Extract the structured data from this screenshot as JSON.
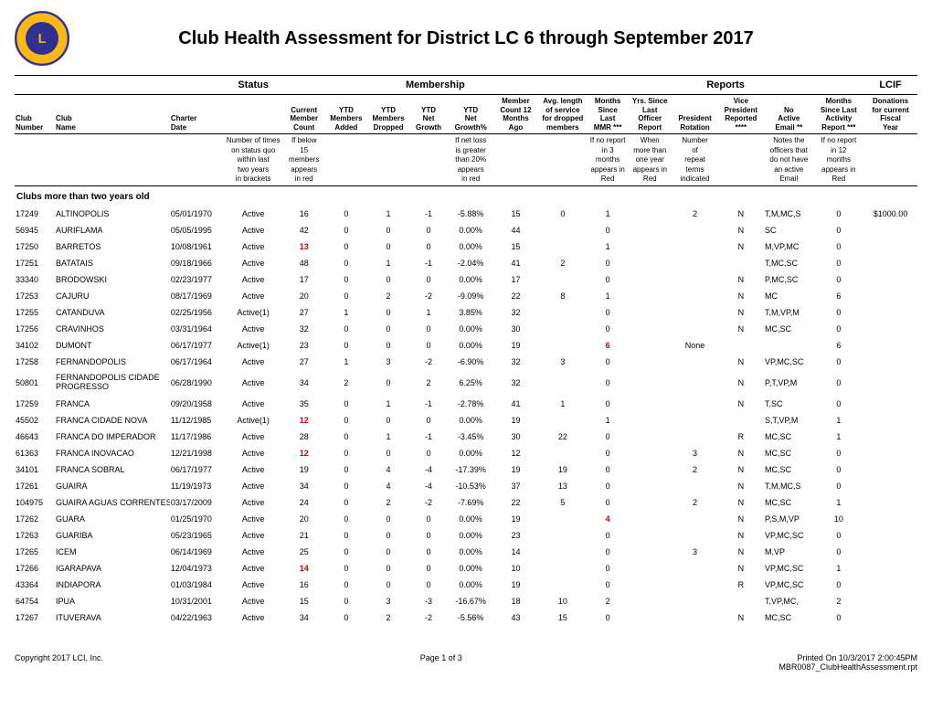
{
  "title": "Club Health Assessment for District LC 6 through September 2017",
  "groupHeaders": {
    "status": "Status",
    "membership": "Membership",
    "reports": "Reports",
    "lcif": "LCIF"
  },
  "columns": {
    "clubNumber": "Club\nNumber",
    "clubName": "Club\nName",
    "charterDate": "Charter\nDate",
    "status": "",
    "currentMemberCount": "Current\nMember\nCount",
    "ytdAdded": "YTD\nMembers\nAdded",
    "ytdDropped": "YTD\nMembers\nDropped",
    "ytdNetGrowth": "YTD\nNet\nGrowth",
    "ytdNetGrowthPct": "YTD\nNet\nGrowth%",
    "memberCount12": "Member\nCount 12\nMonths\nAgo",
    "avgLength": "Avg. length\nof service\nfor dropped\nmembers",
    "monthsSinceMMR": "Months\nSince\nLast\nMMR ***",
    "yrsSinceOfficer": "Yrs. Since\nLast\nOfficer\nReport",
    "presidentRotation": "President\nRotation",
    "vicePresident": "Vice\nPresident\nReported\n****",
    "noActiveEmail": "No\nActive\nEmail **",
    "monthsSinceActivity": "Months\nSince Last\nActivity\nReport ***",
    "donations": "Donations\nfor current\nFiscal\nYear"
  },
  "notes": {
    "status": "Number of times\non status quo\nwithin last\ntwo years\nin brackets",
    "memberCount": "If below\n15\nmembers\nappears\nin red",
    "netLoss": "If net loss\nis greater\nthan 20%\nappears\nin red",
    "mmr": "If no report\nin 3\nmonths\nappears in\nRed",
    "officer": "When\nmore than\none year\nappears in\nRed",
    "rotation": "Number\nof\nrepeat\nterms\nindicated",
    "email": "Notes the\nofficers that\ndo not have\nan active\nEmail",
    "activity": "If no report\nin 12\nmonths\nappears in\nRed"
  },
  "sectionTitle": "Clubs more than two years old",
  "rows": [
    {
      "num": "17249",
      "name": "ALTINOPOLIS",
      "charter": "05/01/1970",
      "status": "Active",
      "cur": "16",
      "add": "0",
      "drop": "1",
      "net": "-1",
      "pct": "-5.88%",
      "m12": "15",
      "avg": "0",
      "mmr": "1",
      "yrs": "",
      "rot": "2",
      "vp": "N",
      "email": "T,M,MC,S",
      "act": "0",
      "don": "$1000.00"
    },
    {
      "num": "56945",
      "name": "AURIFLAMA",
      "charter": "05/05/1995",
      "status": "Active",
      "cur": "42",
      "add": "0",
      "drop": "0",
      "net": "0",
      "pct": "0.00%",
      "m12": "44",
      "avg": "",
      "mmr": "0",
      "yrs": "",
      "rot": "",
      "vp": "N",
      "email": "SC",
      "act": "0",
      "don": ""
    },
    {
      "num": "17250",
      "name": "BARRETOS",
      "charter": "10/08/1961",
      "status": "Active",
      "cur": "13",
      "curRed": true,
      "add": "0",
      "drop": "0",
      "net": "0",
      "pct": "0.00%",
      "m12": "15",
      "avg": "",
      "mmr": "1",
      "yrs": "",
      "rot": "",
      "vp": "N",
      "email": "M,VP,MC",
      "act": "0",
      "don": ""
    },
    {
      "num": "17251",
      "name": "BATATAIS",
      "charter": "09/18/1966",
      "status": "Active",
      "cur": "48",
      "add": "0",
      "drop": "1",
      "net": "-1",
      "pct": "-2.04%",
      "m12": "41",
      "avg": "2",
      "mmr": "0",
      "yrs": "",
      "rot": "",
      "vp": "",
      "email": "T,MC,SC",
      "act": "0",
      "don": ""
    },
    {
      "num": "33340",
      "name": "BRODOWSKI",
      "charter": "02/23/1977",
      "status": "Active",
      "cur": "17",
      "add": "0",
      "drop": "0",
      "net": "0",
      "pct": "0.00%",
      "m12": "17",
      "avg": "",
      "mmr": "0",
      "yrs": "",
      "rot": "",
      "vp": "N",
      "email": "P,MC,SC",
      "act": "0",
      "don": ""
    },
    {
      "num": "17253",
      "name": "CAJURU",
      "charter": "08/17/1969",
      "status": "Active",
      "cur": "20",
      "add": "0",
      "drop": "2",
      "net": "-2",
      "pct": "-9.09%",
      "m12": "22",
      "avg": "8",
      "mmr": "1",
      "yrs": "",
      "rot": "",
      "vp": "N",
      "email": "MC",
      "act": "6",
      "don": ""
    },
    {
      "num": "17255",
      "name": "CATANDUVA",
      "charter": "02/25/1956",
      "status": "Active(1)",
      "cur": "27",
      "add": "1",
      "drop": "0",
      "net": "1",
      "pct": "3.85%",
      "m12": "32",
      "avg": "",
      "mmr": "0",
      "yrs": "",
      "rot": "",
      "vp": "N",
      "email": "T,M,VP,M",
      "act": "0",
      "don": ""
    },
    {
      "num": "17256",
      "name": "CRAVINHOS",
      "charter": "03/31/1964",
      "status": "Active",
      "cur": "32",
      "add": "0",
      "drop": "0",
      "net": "0",
      "pct": "0.00%",
      "m12": "30",
      "avg": "",
      "mmr": "0",
      "yrs": "",
      "rot": "",
      "vp": "N",
      "email": "MC,SC",
      "act": "0",
      "don": ""
    },
    {
      "num": "34102",
      "name": "DUMONT",
      "charter": "06/17/1977",
      "status": "Active(1)",
      "cur": "23",
      "add": "0",
      "drop": "0",
      "net": "0",
      "pct": "0.00%",
      "m12": "19",
      "avg": "",
      "mmr": "6",
      "mmrRed": true,
      "yrs": "",
      "rot": "None",
      "vp": "",
      "email": "",
      "act": "6",
      "don": ""
    },
    {
      "num": "17258",
      "name": "FERNANDOPOLIS",
      "charter": "06/17/1964",
      "status": "Active",
      "cur": "27",
      "add": "1",
      "drop": "3",
      "net": "-2",
      "pct": "-6.90%",
      "m12": "32",
      "avg": "3",
      "mmr": "0",
      "yrs": "",
      "rot": "",
      "vp": "N",
      "email": "VP,MC,SC",
      "act": "0",
      "don": ""
    },
    {
      "num": "50801",
      "name": "FERNANDOPOLIS CIDADE PROGRESSO",
      "charter": "06/28/1990",
      "status": "Active",
      "cur": "34",
      "add": "2",
      "drop": "0",
      "net": "2",
      "pct": "6.25%",
      "m12": "32",
      "avg": "",
      "mmr": "0",
      "yrs": "",
      "rot": "",
      "vp": "N",
      "email": "P,T,VP,M",
      "act": "0",
      "don": ""
    },
    {
      "num": "17259",
      "name": "FRANCA",
      "charter": "09/20/1958",
      "status": "Active",
      "cur": "35",
      "add": "0",
      "drop": "1",
      "net": "-1",
      "pct": "-2.78%",
      "m12": "41",
      "avg": "1",
      "mmr": "0",
      "yrs": "",
      "rot": "",
      "vp": "N",
      "email": "T,SC",
      "act": "0",
      "don": ""
    },
    {
      "num": "45502",
      "name": "FRANCA CIDADE NOVA",
      "charter": "11/12/1985",
      "status": "Active(1)",
      "cur": "12",
      "curRed": true,
      "add": "0",
      "drop": "0",
      "net": "0",
      "pct": "0.00%",
      "m12": "19",
      "avg": "",
      "mmr": "1",
      "yrs": "",
      "rot": "",
      "vp": "",
      "email": "S,T,VP,M",
      "act": "1",
      "don": ""
    },
    {
      "num": "46643",
      "name": "FRANCA DO IMPERADOR",
      "charter": "11/17/1986",
      "status": "Active",
      "cur": "28",
      "add": "0",
      "drop": "1",
      "net": "-1",
      "pct": "-3.45%",
      "m12": "30",
      "avg": "22",
      "mmr": "0",
      "yrs": "",
      "rot": "",
      "vp": "R",
      "email": "MC,SC",
      "act": "1",
      "don": ""
    },
    {
      "num": "61363",
      "name": "FRANCA INOVACAO",
      "charter": "12/21/1998",
      "status": "Active",
      "cur": "12",
      "curRed": true,
      "add": "0",
      "drop": "0",
      "net": "0",
      "pct": "0.00%",
      "m12": "12",
      "avg": "",
      "mmr": "0",
      "yrs": "",
      "rot": "3",
      "vp": "N",
      "email": "MC,SC",
      "act": "0",
      "don": ""
    },
    {
      "num": "34101",
      "name": "FRANCA SOBRAL",
      "charter": "06/17/1977",
      "status": "Active",
      "cur": "19",
      "add": "0",
      "drop": "4",
      "net": "-4",
      "pct": "-17.39%",
      "m12": "19",
      "avg": "19",
      "mmr": "0",
      "yrs": "",
      "rot": "2",
      "vp": "N",
      "email": "MC,SC",
      "act": "0",
      "don": ""
    },
    {
      "num": "17261",
      "name": "GUAIRA",
      "charter": "11/19/1973",
      "status": "Active",
      "cur": "34",
      "add": "0",
      "drop": "4",
      "net": "-4",
      "pct": "-10.53%",
      "m12": "37",
      "avg": "13",
      "mmr": "0",
      "yrs": "",
      "rot": "",
      "vp": "N",
      "email": "T,M,MC,S",
      "act": "0",
      "don": ""
    },
    {
      "num": "104975",
      "name": "GUAIRA AGUAS CORRENTES",
      "charter": "03/17/2009",
      "status": "Active",
      "cur": "24",
      "add": "0",
      "drop": "2",
      "net": "-2",
      "pct": "-7.69%",
      "m12": "22",
      "avg": "5",
      "mmr": "0",
      "yrs": "",
      "rot": "2",
      "vp": "N",
      "email": "MC,SC",
      "act": "1",
      "don": ""
    },
    {
      "num": "17262",
      "name": "GUARA",
      "charter": "01/25/1970",
      "status": "Active",
      "cur": "20",
      "add": "0",
      "drop": "0",
      "net": "0",
      "pct": "0.00%",
      "m12": "19",
      "avg": "",
      "mmr": "4",
      "mmrRed": true,
      "yrs": "",
      "rot": "",
      "vp": "N",
      "email": "P,S,M,VP",
      "act": "10",
      "don": ""
    },
    {
      "num": "17263",
      "name": "GUARIBA",
      "charter": "05/23/1965",
      "status": "Active",
      "cur": "21",
      "add": "0",
      "drop": "0",
      "net": "0",
      "pct": "0.00%",
      "m12": "23",
      "avg": "",
      "mmr": "0",
      "yrs": "",
      "rot": "",
      "vp": "N",
      "email": "VP,MC,SC",
      "act": "0",
      "don": ""
    },
    {
      "num": "17265",
      "name": "ICEM",
      "charter": "06/14/1969",
      "status": "Active",
      "cur": "25",
      "add": "0",
      "drop": "0",
      "net": "0",
      "pct": "0.00%",
      "m12": "14",
      "avg": "",
      "mmr": "0",
      "yrs": "",
      "rot": "3",
      "vp": "N",
      "email": "M,VP",
      "act": "0",
      "don": ""
    },
    {
      "num": "17266",
      "name": "IGARAPAVA",
      "charter": "12/04/1973",
      "status": "Active",
      "cur": "14",
      "curRed": true,
      "add": "0",
      "drop": "0",
      "net": "0",
      "pct": "0.00%",
      "m12": "10",
      "avg": "",
      "mmr": "0",
      "yrs": "",
      "rot": "",
      "vp": "N",
      "email": "VP,MC,SC",
      "act": "1",
      "don": ""
    },
    {
      "num": "43364",
      "name": "INDIAPORA",
      "charter": "01/03/1984",
      "status": "Active",
      "cur": "16",
      "add": "0",
      "drop": "0",
      "net": "0",
      "pct": "0.00%",
      "m12": "19",
      "avg": "",
      "mmr": "0",
      "yrs": "",
      "rot": "",
      "vp": "R",
      "email": "VP,MC,SC",
      "act": "0",
      "don": ""
    },
    {
      "num": "64754",
      "name": "IPUA",
      "charter": "10/31/2001",
      "status": "Active",
      "cur": "15",
      "add": "0",
      "drop": "3",
      "net": "-3",
      "pct": "-16.67%",
      "m12": "18",
      "avg": "10",
      "mmr": "2",
      "yrs": "",
      "rot": "",
      "vp": "",
      "email": "T,VP,MC,",
      "act": "2",
      "don": ""
    },
    {
      "num": "17267",
      "name": "ITUVERAVA",
      "charter": "04/22/1963",
      "status": "Active",
      "cur": "34",
      "add": "0",
      "drop": "2",
      "net": "-2",
      "pct": "-5.56%",
      "m12": "43",
      "avg": "15",
      "mmr": "0",
      "yrs": "",
      "rot": "",
      "vp": "N",
      "email": "MC,SC",
      "act": "0",
      "don": ""
    }
  ],
  "footer": {
    "copyright": "Copyright 2017 LCI, Inc.",
    "page": "Page 1 of 3",
    "printed": "Printed On  10/3/2017   2:00:45PM",
    "report": "MBR0087_ClubHealthAssessment.rpt"
  },
  "colWidths": {
    "num": "42px",
    "name": "120px",
    "charter": "56px",
    "status": "62px",
    "cur": "44px",
    "add": "44px",
    "drop": "44px",
    "net": "40px",
    "pct": "48px",
    "m12": "46px",
    "avg": "52px",
    "mmr": "42px",
    "yrs": "46px",
    "rot": "48px",
    "vp": "48px",
    "email": "52px",
    "act": "52px",
    "don": "56px"
  }
}
